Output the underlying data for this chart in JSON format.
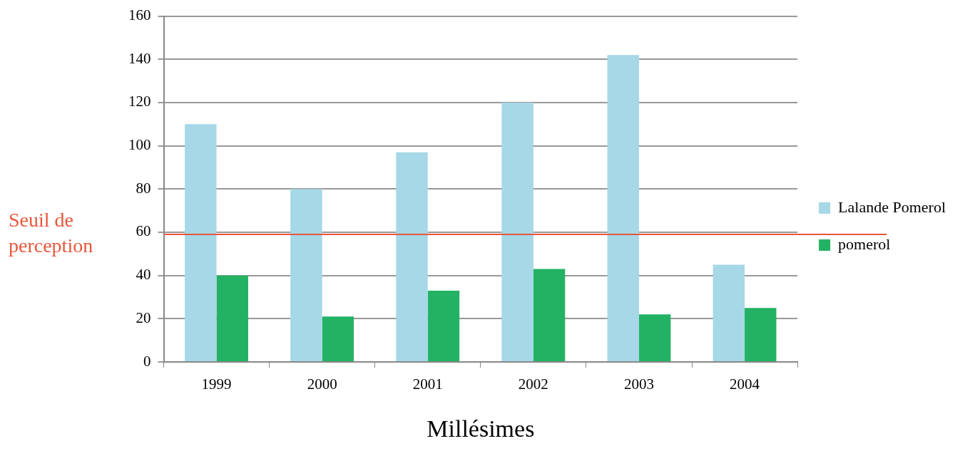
{
  "chart_data": {
    "type": "bar",
    "xlabel": "Millésimes",
    "categories": [
      "1999",
      "2000",
      "2001",
      "2002",
      "2003",
      "2004"
    ],
    "series": [
      {
        "name": "Lalande Pomerol",
        "color": "#a6d8e7",
        "values": [
          110,
          80,
          97,
          120,
          142,
          45
        ]
      },
      {
        "name": "pomerol",
        "color": "#23b264",
        "values": [
          40,
          21,
          33,
          43,
          22,
          25
        ]
      }
    ],
    "ylim": [
      0,
      160
    ],
    "yticks": [
      0,
      20,
      40,
      60,
      80,
      100,
      120,
      140,
      160
    ],
    "grid": "y",
    "legend": "right",
    "ref_lines": [
      {
        "axis": "y",
        "value": 59,
        "label": "Seuil de perception",
        "color": "#e8563a"
      }
    ]
  }
}
